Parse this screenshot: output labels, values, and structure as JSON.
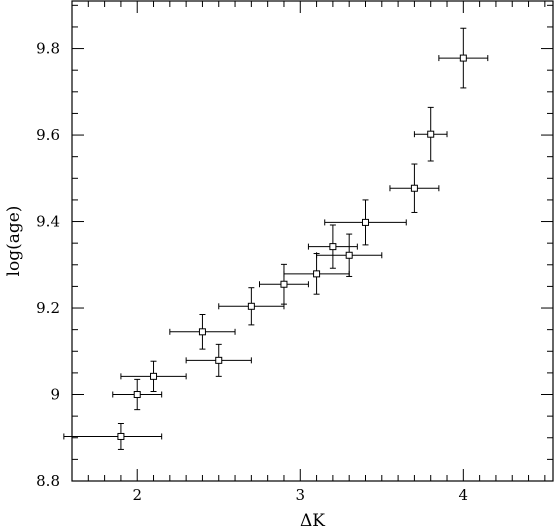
{
  "chart_data": {
    "type": "scatter",
    "title": "",
    "xlabel": "ΔK",
    "ylabel": "log(age)",
    "xlim": [
      1.6,
      4.55
    ],
    "ylim": [
      8.8,
      9.91
    ],
    "x_ticks": [
      2,
      3,
      4
    ],
    "x_tick_labels": [
      "2",
      "3",
      "4"
    ],
    "y_ticks": [
      8.8,
      9,
      9.2,
      9.4,
      9.6,
      9.8
    ],
    "y_tick_labels": [
      "8.8",
      "9",
      "9.2",
      "9.4",
      "9.6",
      "9.8"
    ],
    "grid": false,
    "points": [
      {
        "x": 1.9,
        "y": 8.903,
        "xerr_minus": 0.35,
        "xerr_plus": 0.25,
        "yerr": 0.03
      },
      {
        "x": 2.0,
        "y": 9.0,
        "xerr_minus": 0.15,
        "xerr_plus": 0.15,
        "yerr": 0.035
      },
      {
        "x": 2.1,
        "y": 9.042,
        "xerr_minus": 0.2,
        "xerr_plus": 0.2,
        "yerr": 0.035
      },
      {
        "x": 2.4,
        "y": 9.145,
        "xerr_minus": 0.2,
        "xerr_plus": 0.2,
        "yerr": 0.04
      },
      {
        "x": 2.5,
        "y": 9.079,
        "xerr_minus": 0.2,
        "xerr_plus": 0.2,
        "yerr": 0.037
      },
      {
        "x": 2.7,
        "y": 9.204,
        "xerr_minus": 0.2,
        "xerr_plus": 0.2,
        "yerr": 0.043
      },
      {
        "x": 2.9,
        "y": 9.255,
        "xerr_minus": 0.15,
        "xerr_plus": 0.15,
        "yerr": 0.046
      },
      {
        "x": 3.1,
        "y": 9.279,
        "xerr_minus": 0.2,
        "xerr_plus": 0.2,
        "yerr": 0.047
      },
      {
        "x": 3.2,
        "y": 9.342,
        "xerr_minus": 0.15,
        "xerr_plus": 0.15,
        "yerr": 0.05
      },
      {
        "x": 3.3,
        "y": 9.322,
        "xerr_minus": 0.2,
        "xerr_plus": 0.2,
        "yerr": 0.049
      },
      {
        "x": 3.4,
        "y": 9.398,
        "xerr_minus": 0.25,
        "xerr_plus": 0.25,
        "yerr": 0.052
      },
      {
        "x": 3.7,
        "y": 9.477,
        "xerr_minus": 0.15,
        "xerr_plus": 0.15,
        "yerr": 0.056
      },
      {
        "x": 3.8,
        "y": 9.602,
        "xerr_minus": 0.1,
        "xerr_plus": 0.1,
        "yerr": 0.062
      },
      {
        "x": 4.0,
        "y": 9.778,
        "xerr_minus": 0.15,
        "xerr_plus": 0.15,
        "yerr": 0.069
      }
    ]
  }
}
